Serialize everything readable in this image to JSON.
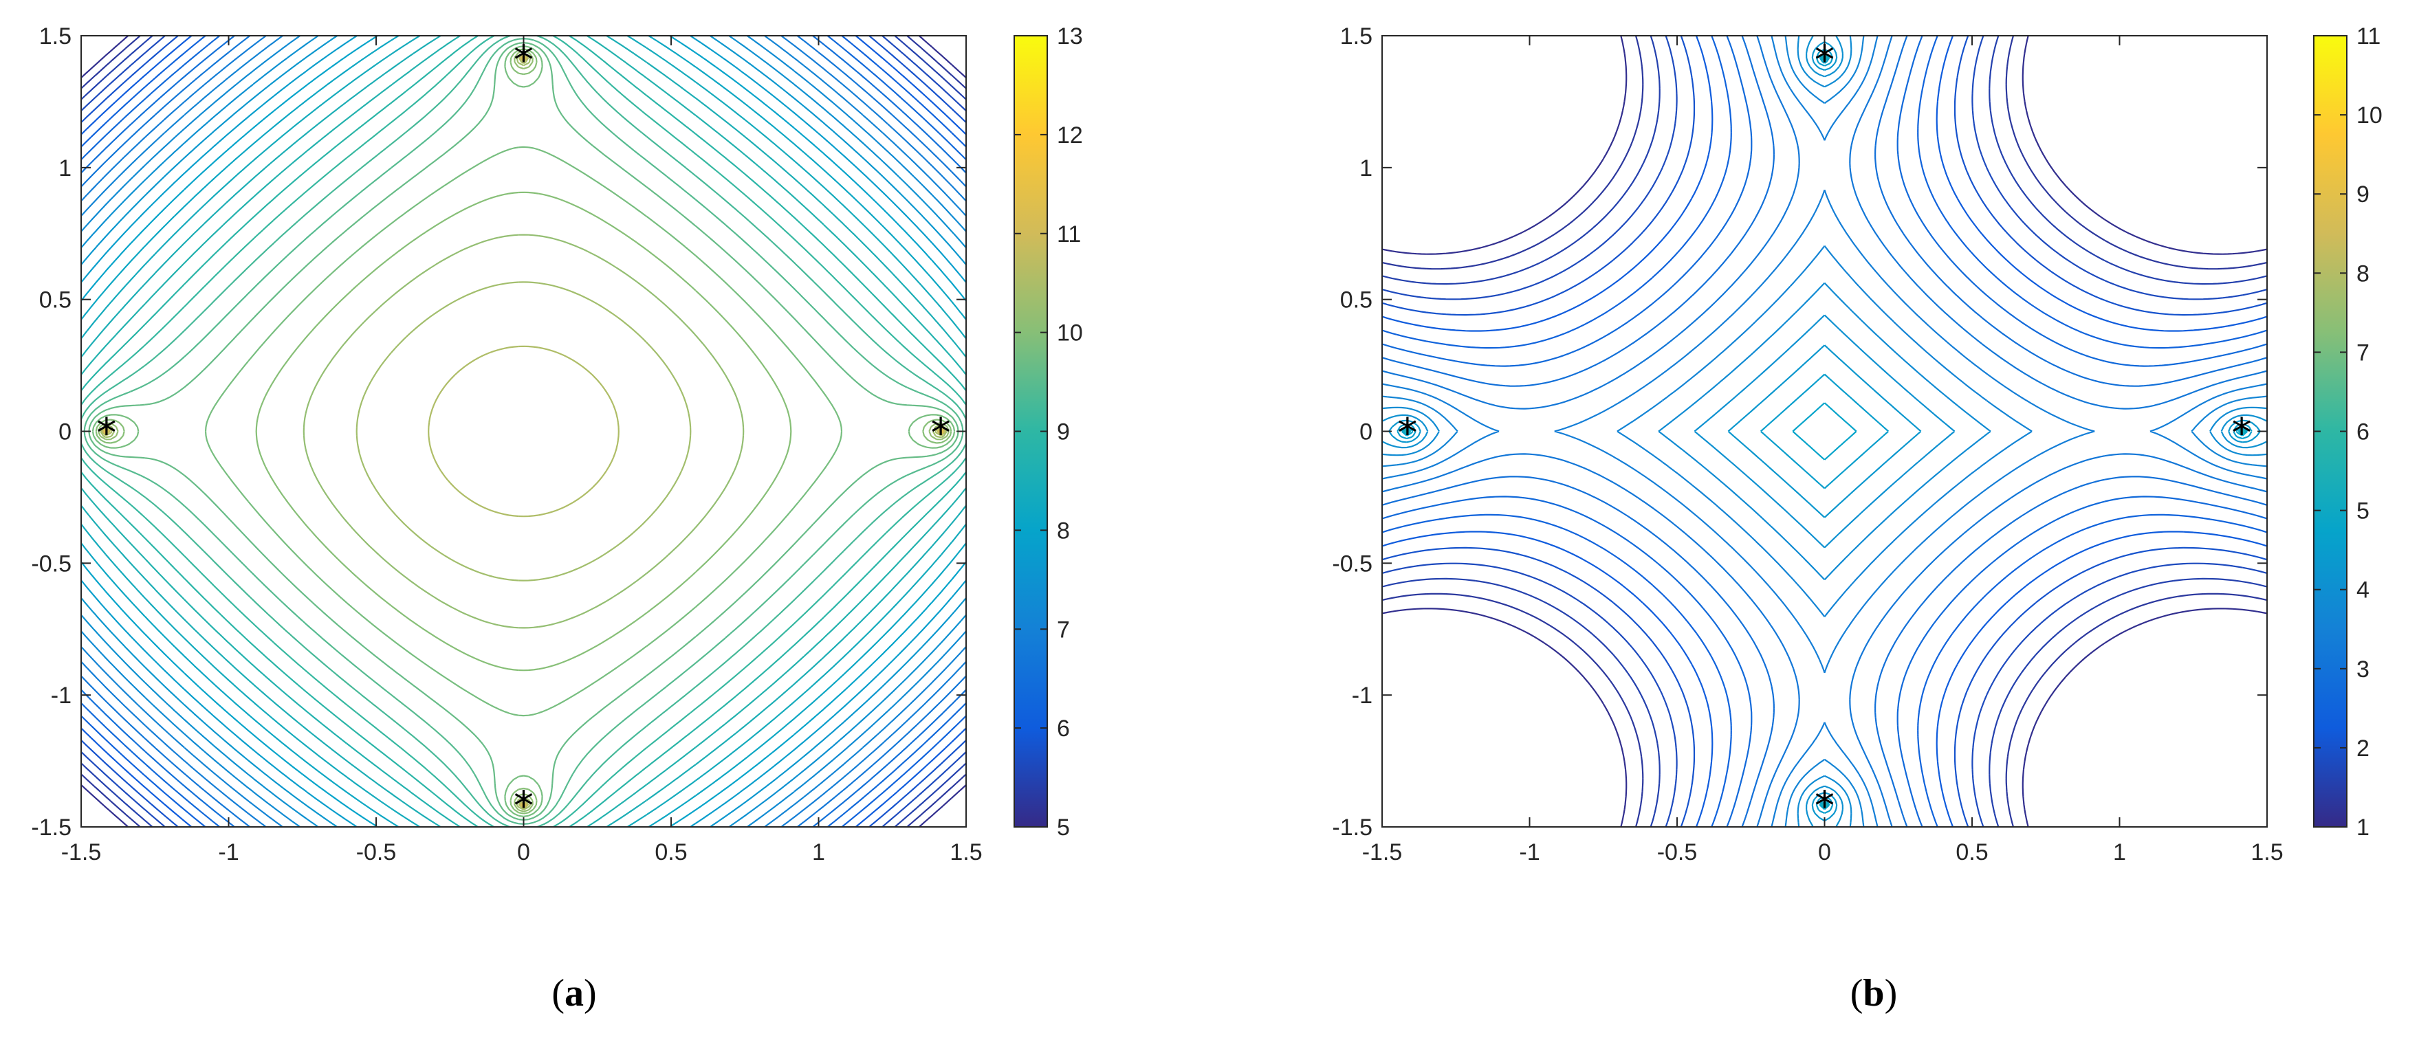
{
  "chart_data": [
    {
      "type": "contour",
      "caption": "a",
      "x_ticks": [
        "-1.5",
        "-1",
        "-0.5",
        "0",
        "0.5",
        "1",
        "1.5"
      ],
      "y_ticks": [
        "1.5",
        "1",
        "0.5",
        "0",
        "-0.5",
        "-1",
        "-1.5"
      ],
      "xlim": [
        -1.5,
        1.5
      ],
      "ylim": [
        -1.5,
        1.5
      ],
      "colorbar": {
        "min": 5,
        "max": 13,
        "ticks": [
          "13",
          "12",
          "11",
          "10",
          "9",
          "8",
          "7",
          "6",
          "5"
        ]
      },
      "markers": [
        {
          "x": -1.414,
          "y": 0,
          "symbol": "*"
        },
        {
          "x": 1.414,
          "y": 0,
          "symbol": "*"
        },
        {
          "x": 0,
          "y": 1.414,
          "symbol": "*"
        },
        {
          "x": 0,
          "y": -1.414,
          "symbol": "*"
        }
      ],
      "colormap": "parula"
    },
    {
      "type": "contour",
      "caption": "b",
      "x_ticks": [
        "-1.5",
        "-1",
        "-0.5",
        "0",
        "0.5",
        "1",
        "1.5"
      ],
      "y_ticks": [
        "1.5",
        "1",
        "0.5",
        "0",
        "-0.5",
        "-1",
        "-1.5"
      ],
      "xlim": [
        -1.5,
        1.5
      ],
      "ylim": [
        -1.5,
        1.5
      ],
      "colorbar": {
        "min": 1,
        "max": 11,
        "ticks": [
          "11",
          "10",
          "9",
          "8",
          "7",
          "6",
          "5",
          "4",
          "3",
          "2",
          "1"
        ]
      },
      "markers": [
        {
          "x": -1.414,
          "y": 0,
          "symbol": "*"
        },
        {
          "x": 1.414,
          "y": 0,
          "symbol": "*"
        },
        {
          "x": 0,
          "y": 1.414,
          "symbol": "*"
        },
        {
          "x": 0,
          "y": -1.414,
          "symbol": "*"
        }
      ],
      "colormap": "parula"
    }
  ]
}
